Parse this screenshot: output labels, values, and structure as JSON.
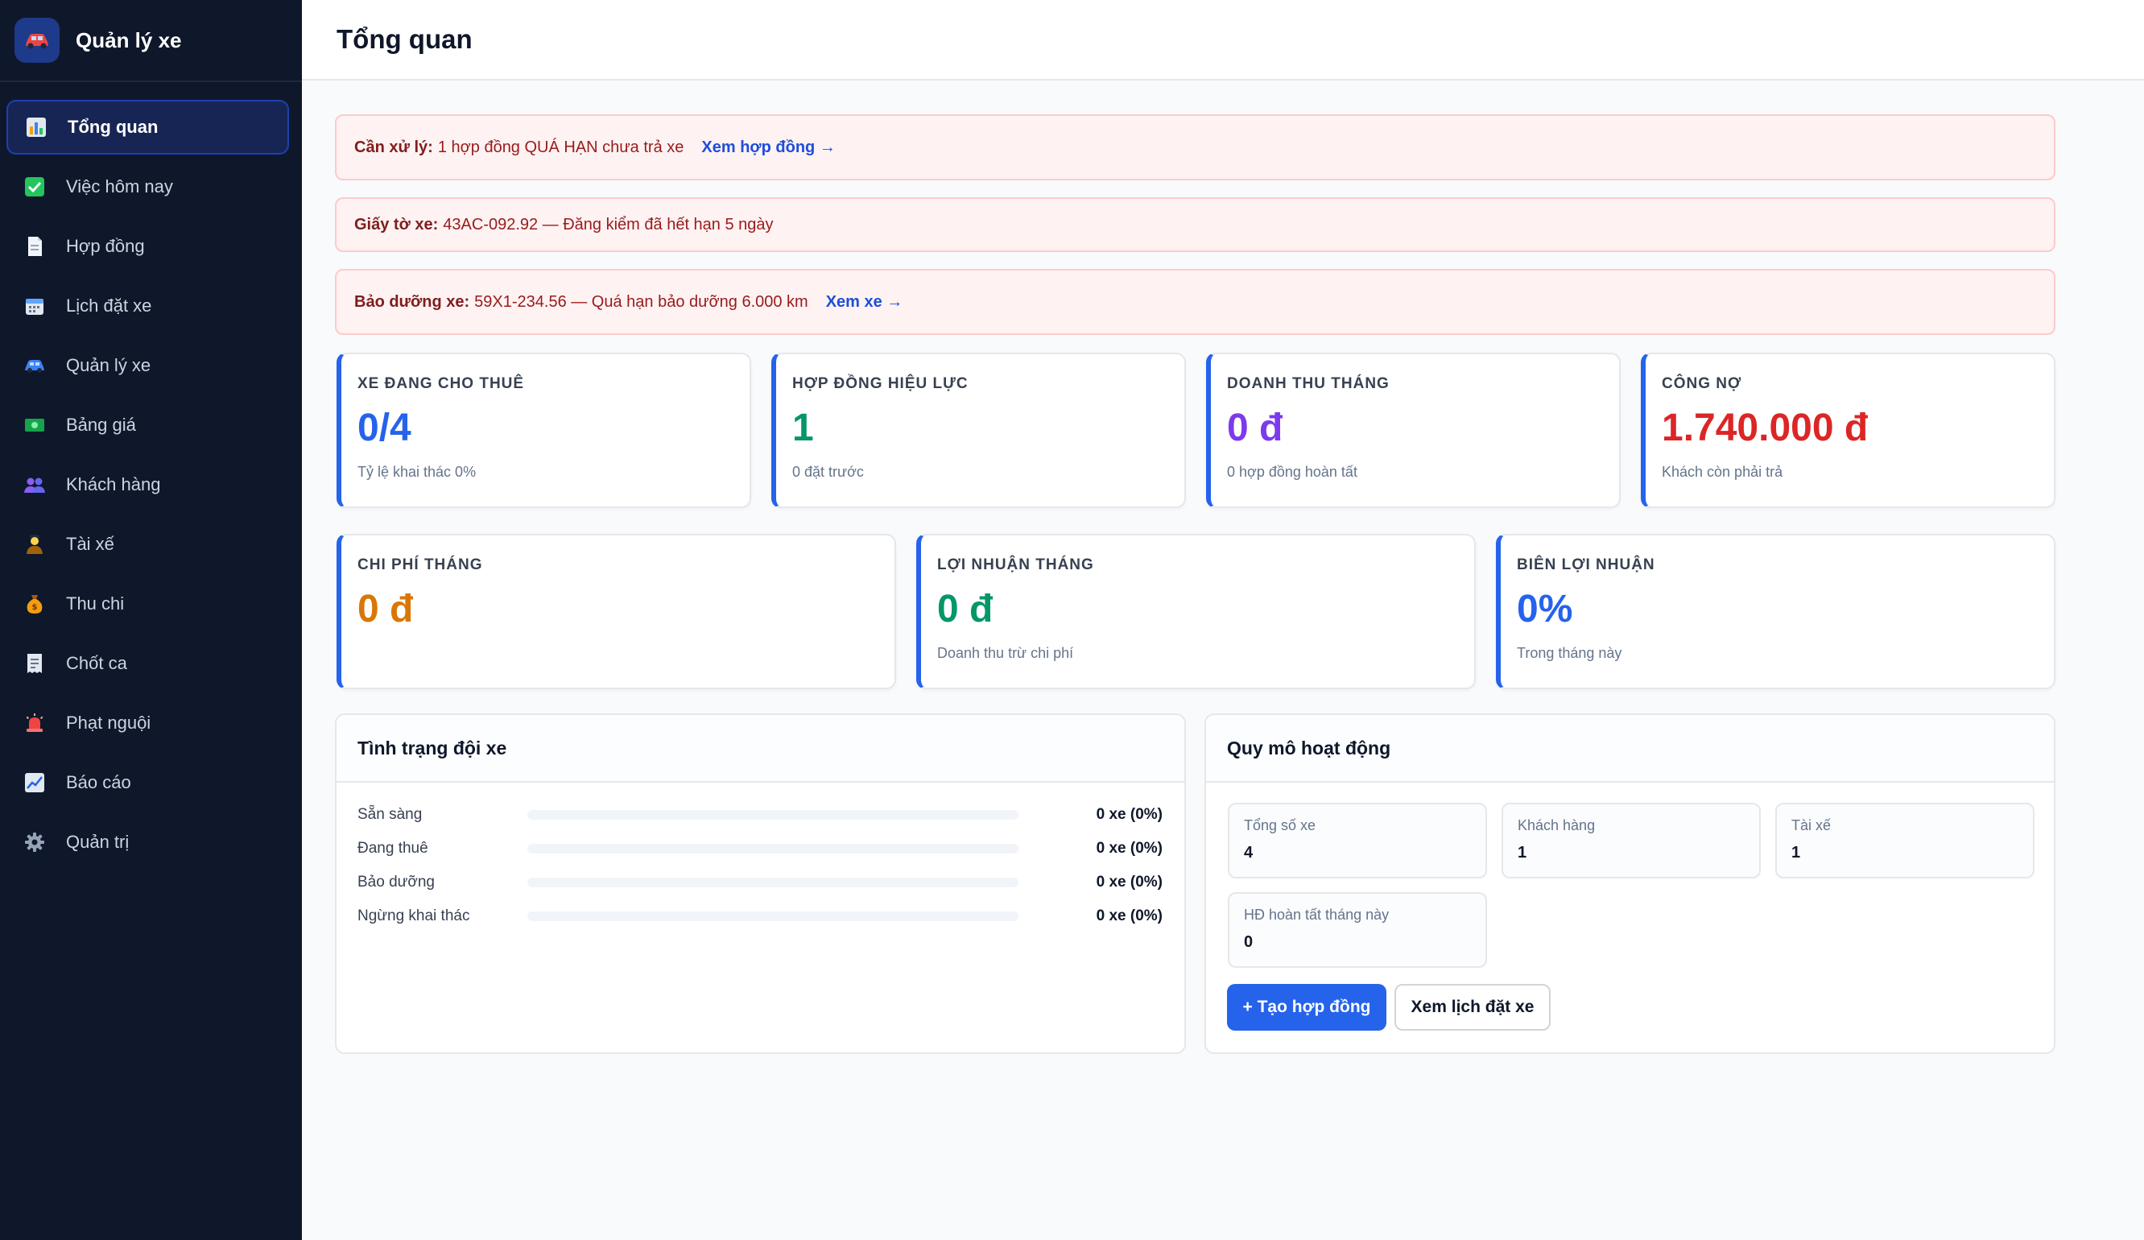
{
  "app": {
    "title": "Quản lý xe",
    "logo_icon": "car-icon"
  },
  "sidebar": {
    "items": [
      {
        "label": "Tổng quan",
        "icon": "chart-icon",
        "color": "#f59e0b",
        "active": true
      },
      {
        "label": "Việc hôm nay",
        "icon": "check-icon",
        "color": "#22c55e"
      },
      {
        "label": "Hợp đồng",
        "icon": "document-icon",
        "color": "#e2e8f0"
      },
      {
        "label": "Lịch đặt xe",
        "icon": "calendar-icon",
        "color": "#60a5fa"
      },
      {
        "label": "Quản lý xe",
        "icon": "car-icon",
        "color": "#3b82f6"
      },
      {
        "label": "Bảng giá",
        "icon": "money-icon",
        "color": "#16a34a"
      },
      {
        "label": "Khách hàng",
        "icon": "users-icon",
        "color": "#8b5cf6"
      },
      {
        "label": "Tài xế",
        "icon": "driver-icon",
        "color": "#a16207"
      },
      {
        "label": "Thu chi",
        "icon": "money-bag-icon",
        "color": "#f59e0b"
      },
      {
        "label": "Chốt ca",
        "icon": "receipt-icon",
        "color": "#e2e8f0"
      },
      {
        "label": "Phạt nguội",
        "icon": "siren-icon",
        "color": "#ef4444"
      },
      {
        "label": "Báo cáo",
        "icon": "trend-icon",
        "color": "#60a5fa"
      },
      {
        "label": "Quản trị",
        "icon": "gear-icon",
        "color": "#94a3b8"
      }
    ]
  },
  "header": {
    "title": "Tổng quan"
  },
  "alerts": [
    {
      "title": "Cần xử lý:",
      "message": "1 hợp đồng QUÁ HẠN chưa trả xe",
      "link": "Xem hợp đồng →"
    },
    {
      "title": "Giấy tờ xe:",
      "message": "43AC-092.92 — Đăng kiểm đã hết hạn 5 ngày",
      "link": ""
    },
    {
      "title": "Bảo dưỡng xe:",
      "message": "59X1-234.56 — Quá hạn bảo dưỡng 6.000 km",
      "link": "Xem xe →"
    }
  ],
  "stats_row1": [
    {
      "label": "XE ĐANG CHO THUÊ",
      "value": "0/4",
      "sub": "Tỷ lệ khai thác 0%",
      "color": "#2563eb"
    },
    {
      "label": "HỢP ĐỒNG HIỆU LỰC",
      "value": "1",
      "sub": "0 đặt trước",
      "color": "#059669"
    },
    {
      "label": "DOANH THU THÁNG",
      "value": "0 đ",
      "sub": "0 hợp đồng hoàn tất",
      "color": "#7c3aed"
    },
    {
      "label": "CÔNG NỢ",
      "value": "1.740.000 đ",
      "sub": "Khách còn phải trả",
      "color": "#dc2626"
    }
  ],
  "stats_row2": [
    {
      "label": "CHI PHÍ THÁNG",
      "value": "0 đ",
      "sub": "",
      "color": "#d97706"
    },
    {
      "label": "LỢI NHUẬN THÁNG",
      "value": "0 đ",
      "sub": "Doanh thu trừ chi phí",
      "color": "#059669"
    },
    {
      "label": "BIÊN LỢI NHUẬN",
      "value": "0%",
      "sub": "Trong tháng này",
      "color": "#2563eb"
    }
  ],
  "fleet": {
    "title": "Tình trạng đội xe",
    "rows": [
      {
        "label": "Sẵn sàng",
        "value": "0 xe (0%)",
        "percent": 0
      },
      {
        "label": "Đang thuê",
        "value": "0 xe (0%)",
        "percent": 0
      },
      {
        "label": "Bảo dưỡng",
        "value": "0 xe (0%)",
        "percent": 0
      },
      {
        "label": "Ngừng khai thác",
        "value": "0 xe (0%)",
        "percent": 0
      }
    ]
  },
  "scale": {
    "title": "Quy mô hoạt động",
    "items": [
      {
        "label": "Tổng số xe",
        "value": "4"
      },
      {
        "label": "Khách hàng",
        "value": "1"
      },
      {
        "label": "Tài xế",
        "value": "1"
      },
      {
        "label": "HĐ hoàn tất tháng này",
        "value": "0"
      }
    ],
    "create_button": "+ Tạo hợp đồng",
    "schedule_button": "Xem lịch đặt xe"
  },
  "colors": {
    "accent": "#2563eb",
    "sidebar_bg": "#0f172a",
    "alert_bg": "#fef2f2"
  }
}
